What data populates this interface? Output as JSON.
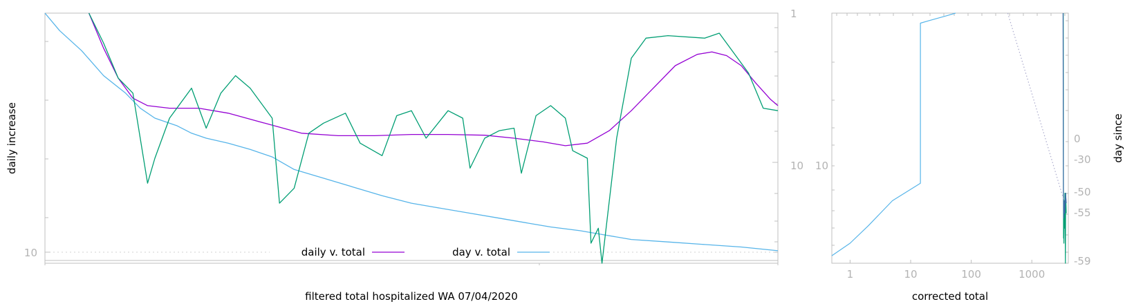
{
  "chart_data": [
    {
      "type": "line",
      "title": "",
      "xlabel": "filtered total hospitalized WA 07/04/2020",
      "ylabel": "daily increase",
      "yscale": "log",
      "grid": false,
      "legend": {
        "placement": "bottom-center",
        "entries": [
          {
            "name": "daily v. total",
            "color": "#9400d3"
          },
          {
            "name": "day v. total",
            "color": "#56b4e9"
          }
        ]
      },
      "y_left_ticks": [
        {
          "label": "10",
          "value": 10
        }
      ],
      "y_right_ticks": [
        {
          "label": "1",
          "value": 1
        },
        {
          "label": "10",
          "value": 10
        }
      ],
      "series": [
        {
          "name": "daily v. total",
          "color": "#9400d3",
          "points": [
            [
              0.06,
              0.0
            ],
            [
              0.08,
              0.14
            ],
            [
              0.1,
              0.26
            ],
            [
              0.12,
              0.34
            ],
            [
              0.14,
              0.37
            ],
            [
              0.17,
              0.38
            ],
            [
              0.21,
              0.38
            ],
            [
              0.25,
              0.4
            ],
            [
              0.3,
              0.44
            ],
            [
              0.35,
              0.48
            ],
            [
              0.4,
              0.49
            ],
            [
              0.45,
              0.49
            ],
            [
              0.5,
              0.485
            ],
            [
              0.55,
              0.485
            ],
            [
              0.6,
              0.488
            ],
            [
              0.64,
              0.5
            ],
            [
              0.68,
              0.515
            ],
            [
              0.71,
              0.53
            ],
            [
              0.74,
              0.52
            ],
            [
              0.77,
              0.47
            ],
            [
              0.8,
              0.39
            ],
            [
              0.83,
              0.3
            ],
            [
              0.86,
              0.21
            ],
            [
              0.89,
              0.165
            ],
            [
              0.91,
              0.155
            ],
            [
              0.93,
              0.17
            ],
            [
              0.95,
              0.21
            ],
            [
              0.97,
              0.28
            ],
            [
              0.99,
              0.345
            ],
            [
              1.0,
              0.37
            ]
          ]
        },
        {
          "name": "day v. total",
          "color": "#56b4e9",
          "points": [
            [
              0.0,
              0.0
            ],
            [
              0.02,
              0.07
            ],
            [
              0.05,
              0.15
            ],
            [
              0.08,
              0.25
            ],
            [
              0.11,
              0.32
            ],
            [
              0.13,
              0.38
            ],
            [
              0.15,
              0.42
            ],
            [
              0.18,
              0.45
            ],
            [
              0.2,
              0.48
            ],
            [
              0.22,
              0.5
            ],
            [
              0.25,
              0.52
            ],
            [
              0.28,
              0.545
            ],
            [
              0.31,
              0.575
            ],
            [
              0.34,
              0.625
            ],
            [
              0.38,
              0.66
            ],
            [
              0.42,
              0.695
            ],
            [
              0.46,
              0.73
            ],
            [
              0.5,
              0.76
            ],
            [
              0.53,
              0.775
            ],
            [
              0.58,
              0.8
            ],
            [
              0.62,
              0.82
            ],
            [
              0.66,
              0.84
            ],
            [
              0.69,
              0.855
            ],
            [
              0.73,
              0.87
            ],
            [
              0.76,
              0.885
            ],
            [
              0.8,
              0.905
            ],
            [
              0.85,
              0.915
            ],
            [
              0.9,
              0.925
            ],
            [
              0.95,
              0.935
            ],
            [
              1.0,
              0.95
            ]
          ]
        },
        {
          "name": "",
          "color": "#009e73",
          "points": [
            [
              0.06,
              0.0
            ],
            [
              0.08,
              0.12
            ],
            [
              0.1,
              0.26
            ],
            [
              0.12,
              0.32
            ],
            [
              0.13,
              0.5
            ],
            [
              0.14,
              0.68
            ],
            [
              0.15,
              0.58
            ],
            [
              0.17,
              0.42
            ],
            [
              0.2,
              0.3
            ],
            [
              0.22,
              0.46
            ],
            [
              0.24,
              0.32
            ],
            [
              0.26,
              0.25
            ],
            [
              0.28,
              0.3
            ],
            [
              0.31,
              0.42
            ],
            [
              0.32,
              0.76
            ],
            [
              0.34,
              0.7
            ],
            [
              0.36,
              0.48
            ],
            [
              0.38,
              0.44
            ],
            [
              0.41,
              0.4
            ],
            [
              0.43,
              0.52
            ],
            [
              0.46,
              0.57
            ],
            [
              0.48,
              0.41
            ],
            [
              0.5,
              0.39
            ],
            [
              0.52,
              0.5
            ],
            [
              0.55,
              0.39
            ],
            [
              0.57,
              0.42
            ],
            [
              0.58,
              0.62
            ],
            [
              0.6,
              0.5
            ],
            [
              0.62,
              0.47
            ],
            [
              0.64,
              0.46
            ],
            [
              0.65,
              0.64
            ],
            [
              0.67,
              0.41
            ],
            [
              0.69,
              0.37
            ],
            [
              0.71,
              0.42
            ],
            [
              0.72,
              0.55
            ],
            [
              0.74,
              0.58
            ],
            [
              0.745,
              0.92
            ],
            [
              0.755,
              0.86
            ],
            [
              0.76,
              1.0
            ],
            [
              0.78,
              0.5
            ],
            [
              0.8,
              0.18
            ],
            [
              0.82,
              0.1
            ],
            [
              0.85,
              0.09
            ],
            [
              0.9,
              0.1
            ],
            [
              0.92,
              0.08
            ],
            [
              0.94,
              0.16
            ],
            [
              0.96,
              0.24
            ],
            [
              0.98,
              0.38
            ],
            [
              1.0,
              0.39
            ]
          ]
        }
      ]
    },
    {
      "type": "line",
      "title": "",
      "xlabel": "corrected total",
      "ylabel": "day since",
      "xscale": "log",
      "yscale": "log",
      "grid": false,
      "x_ticks": [
        {
          "label": "1",
          "value": 1
        },
        {
          "label": "10",
          "value": 10
        },
        {
          "label": "100",
          "value": 100
        },
        {
          "label": "1000",
          "value": 1000
        }
      ],
      "xlim": [
        0.5,
        4000
      ],
      "y_left_ticks": [
        {
          "label": "10",
          "value": 10
        }
      ],
      "y_right_ticks": [
        {
          "label": "0",
          "value": 0
        },
        {
          "label": "-30",
          "value": -30
        },
        {
          "label": "-50",
          "value": -50
        },
        {
          "label": "-55",
          "value": -55
        },
        {
          "label": "-59",
          "value": -59
        }
      ],
      "series": [
        {
          "name": "",
          "color": "#56b4e9",
          "points": [
            [
              0.5,
              0.97
            ],
            [
              1.0,
              0.92
            ],
            [
              2.0,
              0.85
            ],
            [
              5.0,
              0.75
            ],
            [
              14.5,
              0.68
            ],
            [
              14.5,
              0.04
            ],
            [
              20,
              0.03
            ],
            [
              40,
              0.01
            ],
            [
              55,
              0.0
            ]
          ]
        },
        {
          "name": "",
          "color": "#009e73",
          "points": [
            [
              3300,
              0.0
            ],
            [
              3320,
              0.58
            ],
            [
              3340,
              0.9
            ],
            [
              3360,
              0.78
            ],
            [
              3380,
              0.92
            ],
            [
              3420,
              0.8
            ],
            [
              3460,
              0.86
            ],
            [
              3520,
              0.72
            ],
            [
              3580,
              1.0
            ],
            [
              3620,
              0.72
            ],
            [
              3700,
              0.8
            ]
          ]
        },
        {
          "name": "",
          "color": "#3c6aa8",
          "points": [
            [
              3280,
              0.0
            ],
            [
              3320,
              0.7
            ],
            [
              3360,
              0.82
            ],
            [
              3420,
              0.75
            ],
            [
              3500,
              0.8
            ],
            [
              3600,
              0.72
            ],
            [
              3700,
              0.76
            ]
          ]
        },
        {
          "name": "",
          "color": "#aaaacc",
          "dashed": true,
          "points": [
            [
              400,
              0.0
            ],
            [
              3400,
              0.75
            ]
          ]
        }
      ]
    }
  ]
}
